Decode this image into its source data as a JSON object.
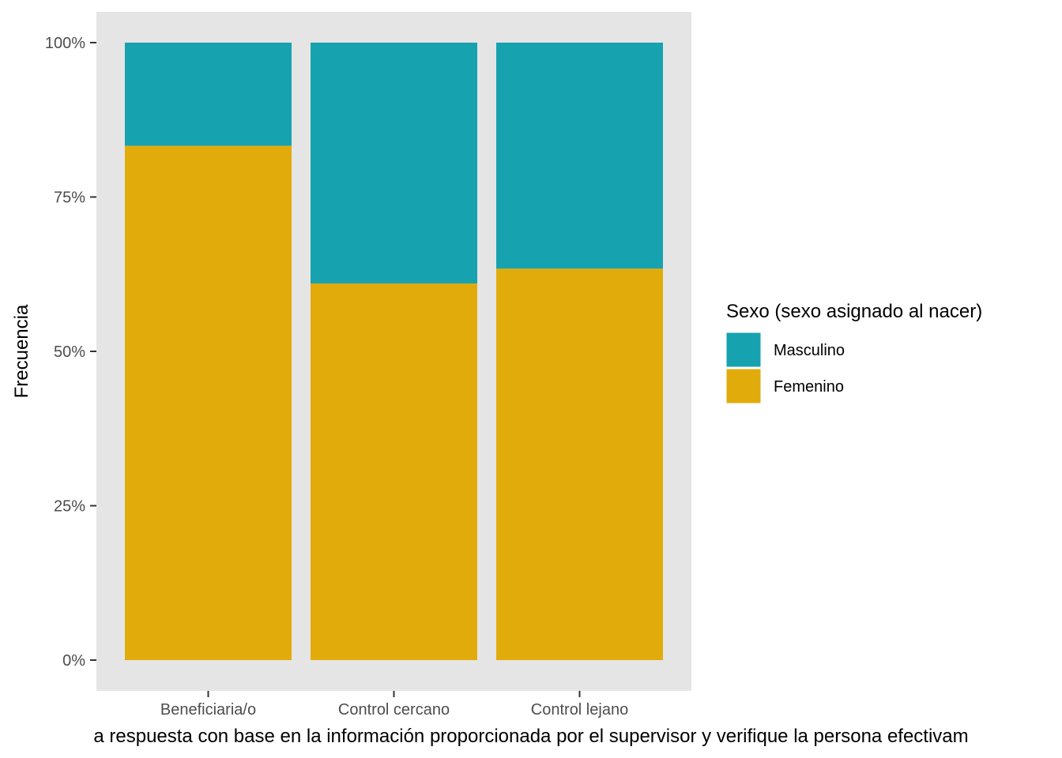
{
  "chart_data": {
    "type": "bar",
    "stacked": true,
    "percent": true,
    "categories": [
      "Beneficiaria/o",
      "Control cercano",
      "Control lejano"
    ],
    "series": [
      {
        "name": "Masculino",
        "values": [
          16.7,
          39.0,
          36.6
        ],
        "color": "#17A2B0"
      },
      {
        "name": "Femenino",
        "values": [
          83.3,
          61.0,
          63.4
        ],
        "color": "#E1AC0B"
      }
    ],
    "ylabel": "Frecuencia",
    "xlabel": "a respuesta con base en la información proporcionada por el supervisor y verifique la persona efectivam",
    "ylim": [
      0,
      100
    ],
    "yticks": [
      0,
      25,
      50,
      75,
      100
    ],
    "ytick_labels": [
      "0%",
      "25%",
      "50%",
      "75%",
      "100%"
    ],
    "legend": {
      "title": "Sexo (sexo asignado al nacer)",
      "placement": "right",
      "entries": [
        "Masculino",
        "Femenino"
      ]
    },
    "panel_background": "#E5E5E5",
    "grid": false
  }
}
